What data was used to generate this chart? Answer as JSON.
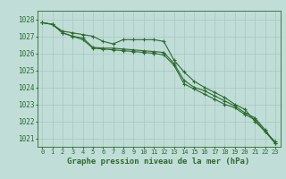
{
  "title": "Graphe pression niveau de la mer (hPa)",
  "x": [
    0,
    1,
    2,
    3,
    4,
    5,
    6,
    7,
    8,
    9,
    10,
    11,
    12,
    13,
    14,
    15,
    16,
    17,
    18,
    19,
    20,
    21,
    22,
    23
  ],
  "line1": [
    1027.8,
    1027.7,
    1027.3,
    1027.2,
    1027.1,
    1027.0,
    1026.7,
    1026.55,
    1026.8,
    1026.8,
    1026.8,
    1026.8,
    1026.7,
    1025.6,
    1024.9,
    1024.35,
    1024.0,
    1023.7,
    1023.4,
    1023.0,
    1022.7,
    1022.0,
    1021.4,
    1020.8
  ],
  "line2": [
    1027.8,
    1027.7,
    1027.2,
    1027.0,
    1026.9,
    1026.35,
    1026.3,
    1026.3,
    1026.25,
    1026.2,
    1026.15,
    1026.1,
    1026.05,
    1025.4,
    1024.4,
    1024.0,
    1023.8,
    1023.5,
    1023.2,
    1022.9,
    1022.5,
    1022.2,
    1021.5,
    1020.7
  ],
  "line3": [
    1027.8,
    1027.7,
    1027.2,
    1027.0,
    1026.8,
    1026.3,
    1026.25,
    1026.2,
    1026.15,
    1026.1,
    1026.05,
    1026.0,
    1025.9,
    1025.3,
    1024.2,
    1023.9,
    1023.6,
    1023.3,
    1023.0,
    1022.8,
    1022.4,
    1022.1,
    1021.4,
    1020.7
  ],
  "ylim": [
    1020.5,
    1028.5
  ],
  "yticks": [
    1021,
    1022,
    1023,
    1024,
    1025,
    1026,
    1027,
    1028
  ],
  "line_color": "#2d6a2d",
  "bg_color": "#c0ddd8",
  "grid_color": "#a8c8c2",
  "xlabel_color": "#2d6a2d",
  "marker": "+",
  "markersize": 3,
  "linewidth": 0.8,
  "title_fontsize": 6.5,
  "tick_fontsize": 5,
  "ytick_fontsize": 5.5
}
